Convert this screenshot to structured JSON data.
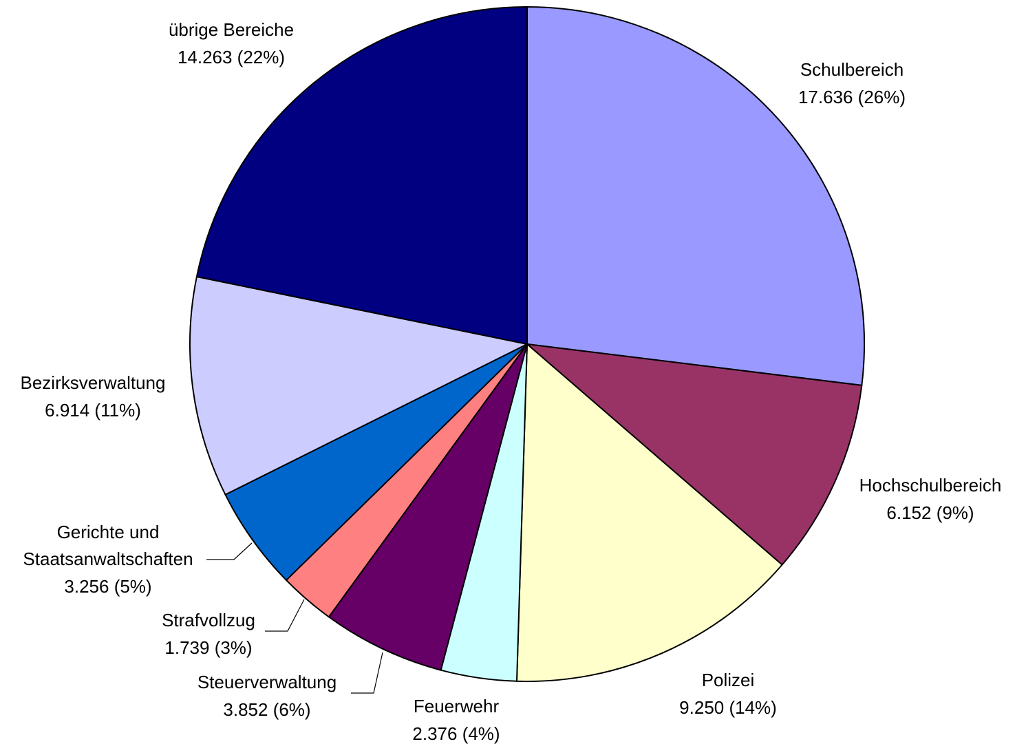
{
  "chart_data": {
    "type": "pie",
    "categories": [
      "Schulbereich",
      "Hochschulbereich",
      "Polizei",
      "Feuerwehr",
      "Steuerverwaltung",
      "Strafvollzug",
      "Gerichte und Staatsanwaltschaften",
      "Bezirksverwaltung",
      "übrige Bereiche"
    ],
    "values": [
      17636,
      6152,
      9250,
      2376,
      3852,
      1739,
      3256,
      6914,
      14263
    ],
    "value_labels": [
      "17.636 (26%)",
      "6.152 (9%)",
      "9.250 (14%)",
      "2.376 (4%)",
      "3.852 (6%)",
      "1.739 (3%)",
      "3.256 (5%)",
      "6.914 (11%)",
      "14.263 (22%)"
    ],
    "colors": [
      "#9999ff",
      "#993366",
      "#ffffcc",
      "#ccffff",
      "#660066",
      "#ff8080",
      "#0066cc",
      "#ccccff",
      "#000080"
    ]
  }
}
